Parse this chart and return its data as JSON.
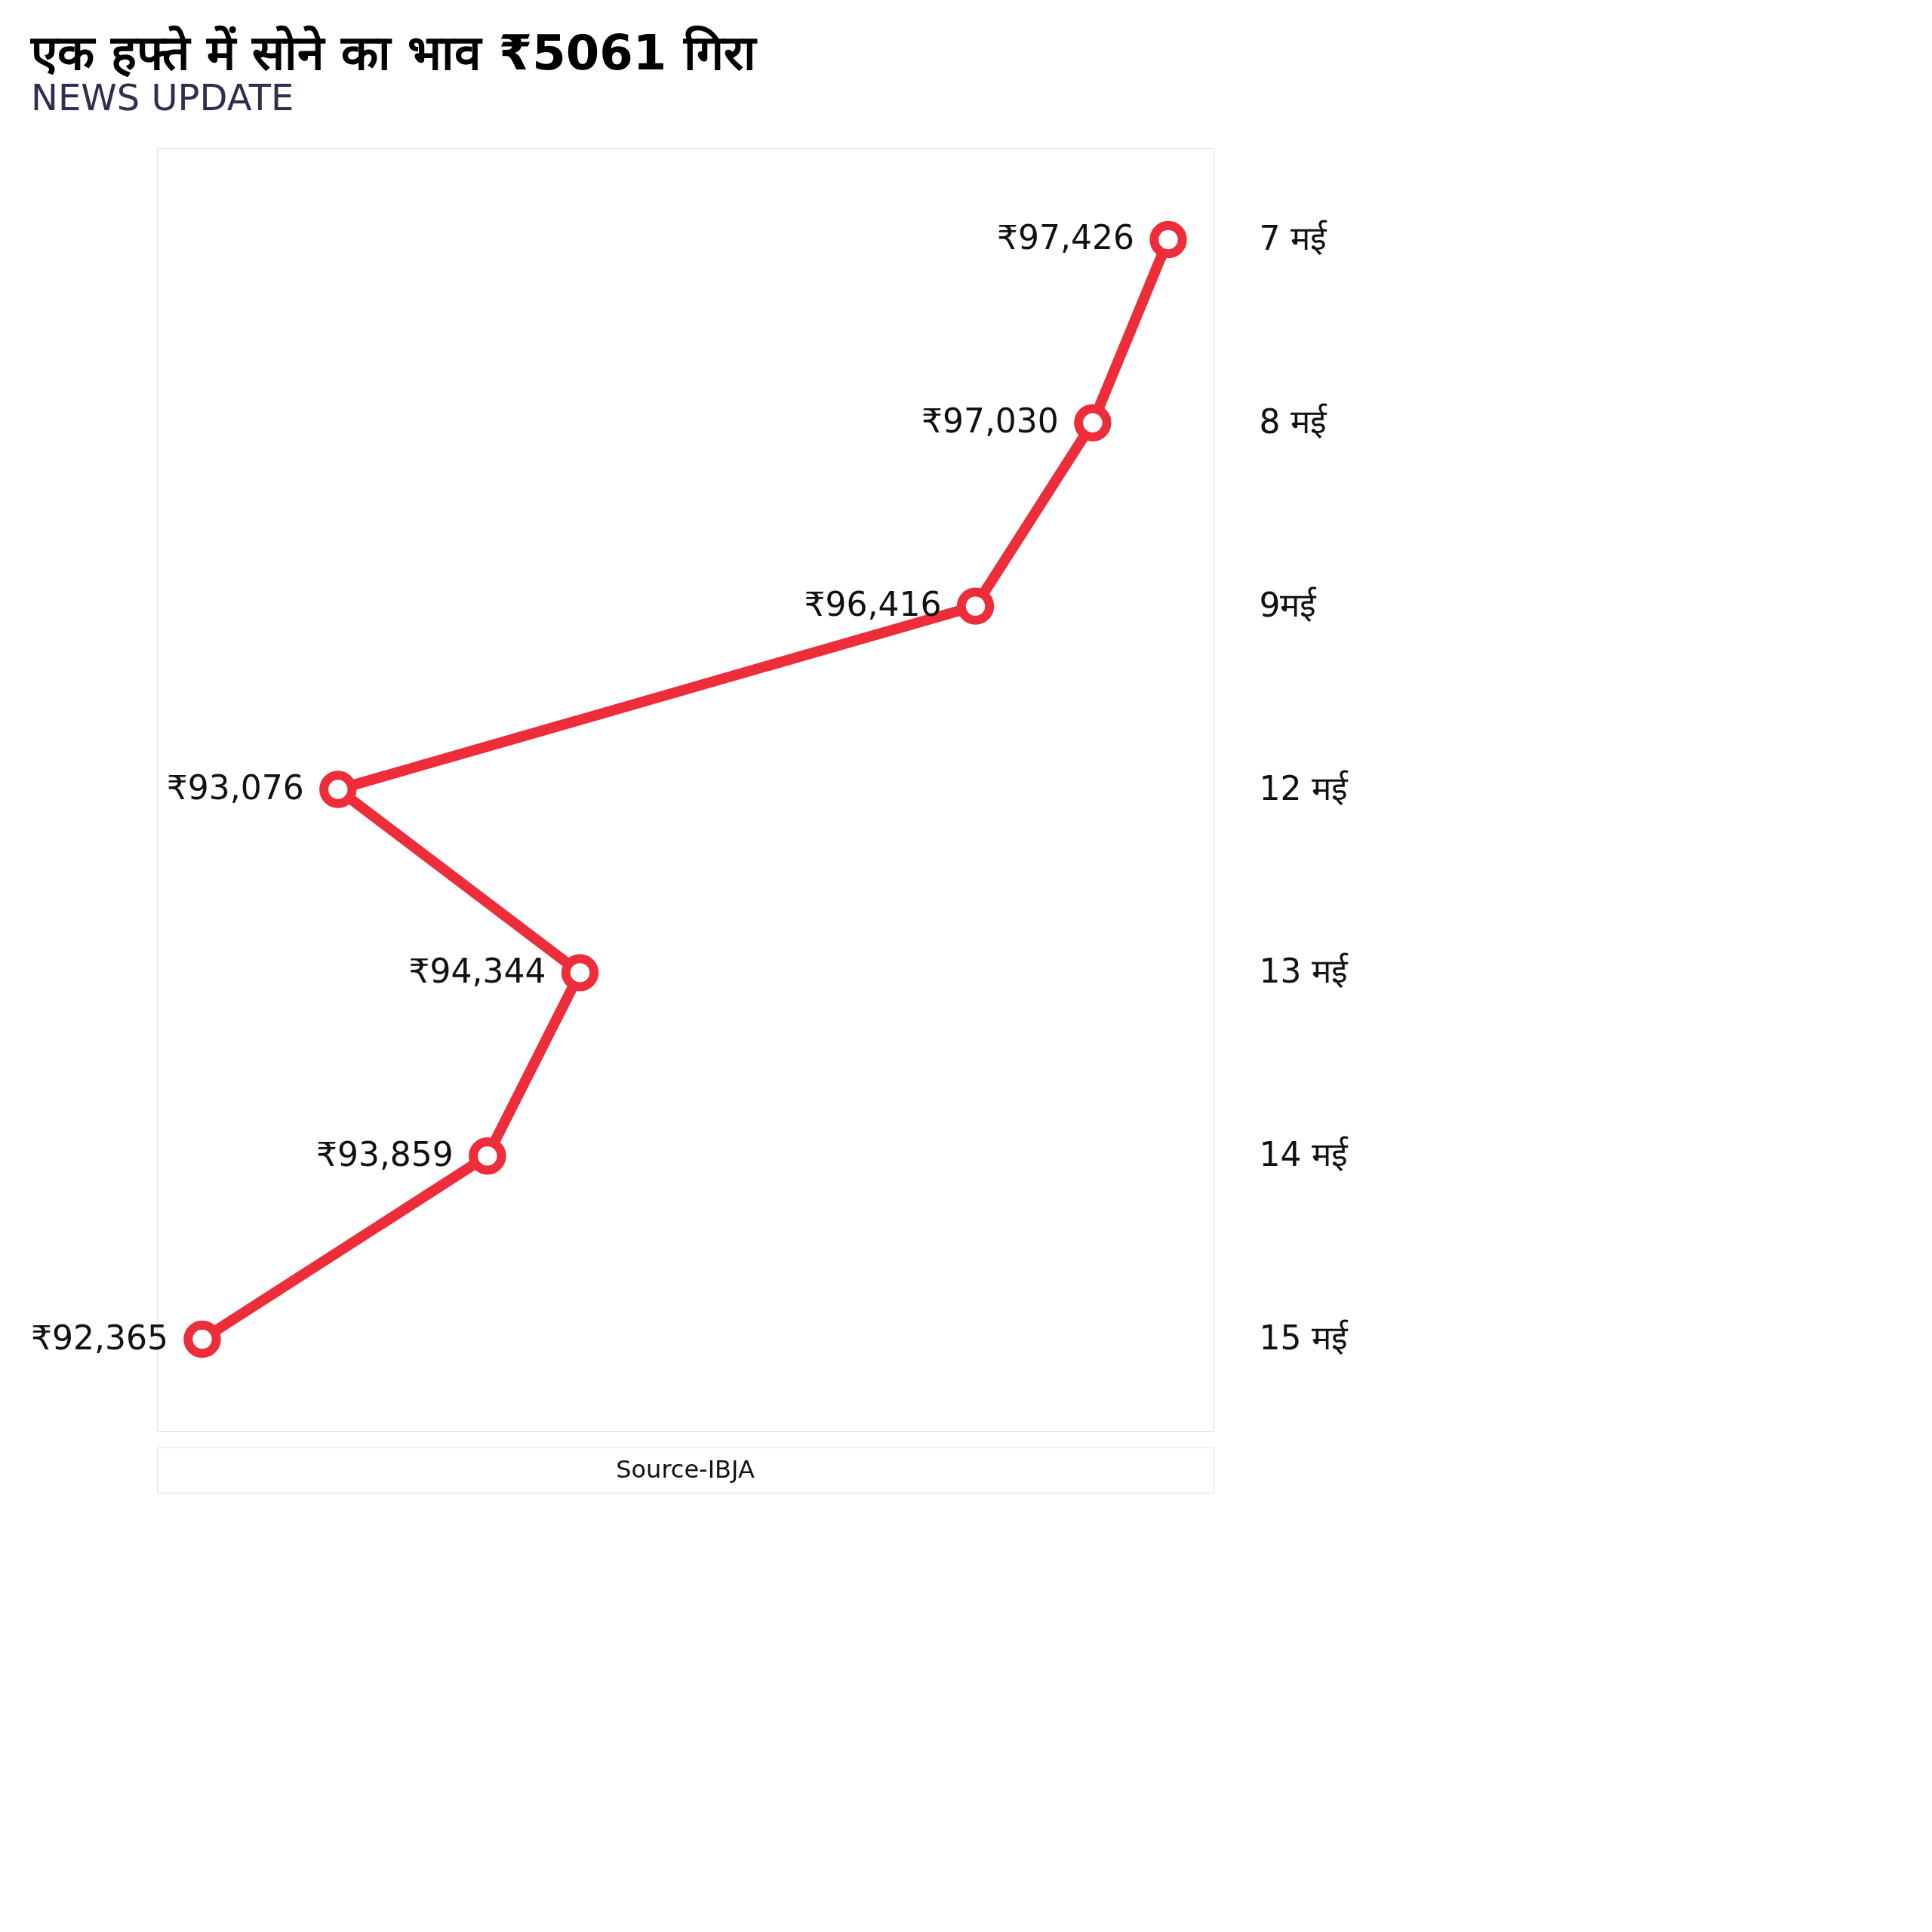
{
  "chart_data": {
    "type": "line",
    "title": "एक हफ्ते में सोने का भाव ₹5061 गिरा",
    "subtitle": "NEWS UPDATE",
    "orientation": "horizontal",
    "categories": [
      "7 मई",
      "8 मई",
      "9मई",
      "12 मई",
      "13 मई",
      "14 मई",
      "15 मई"
    ],
    "series": [
      {
        "color": "#ee2d3a",
        "values": [
          97426,
          97030,
          96416,
          93076,
          94344,
          93859,
          92365
        ],
        "value_labels": [
          "₹97,426",
          "₹97,030",
          "₹96,416",
          "₹93,076",
          "₹94,344",
          "₹93,859",
          "₹92,365"
        ]
      }
    ],
    "marker": "circle",
    "line_style": "solid",
    "grid": false,
    "annotations": [
      "Source-IBJA"
    ]
  }
}
